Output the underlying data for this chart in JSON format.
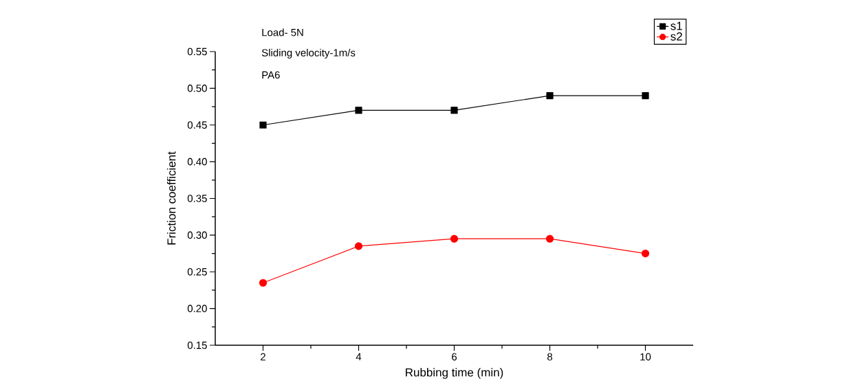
{
  "chart_data": {
    "type": "line",
    "xlabel": "Rubbing time (min)",
    "ylabel": "Friction coefficient",
    "annotations": [
      "Load- 5N",
      "Sliding velocity-1m/s",
      "PA6"
    ],
    "x": [
      2,
      4,
      6,
      8,
      10
    ],
    "series": [
      {
        "name": "s1",
        "color": "#000000",
        "marker": "square",
        "values": [
          0.45,
          0.47,
          0.47,
          0.49,
          0.49
        ]
      },
      {
        "name": "s2",
        "color": "#ff0000",
        "marker": "circle",
        "values": [
          0.235,
          0.285,
          0.295,
          0.295,
          0.275
        ]
      }
    ],
    "xlim": [
      1,
      11
    ],
    "xticks": [
      2,
      4,
      6,
      8,
      10
    ],
    "ylim": [
      0.15,
      0.55
    ],
    "yticks": [
      0.15,
      {
        "value": 0.2,
        "label": "0.20"
      },
      0.25,
      {
        "value": 0.3,
        "label": "0.30"
      },
      0.35,
      {
        "value": 0.4,
        "label": "0.40"
      },
      0.45,
      {
        "value": 0.5,
        "label": "0.50"
      },
      0.55
    ],
    "legend": "top right",
    "grid": false,
    "line_style": "solid"
  }
}
